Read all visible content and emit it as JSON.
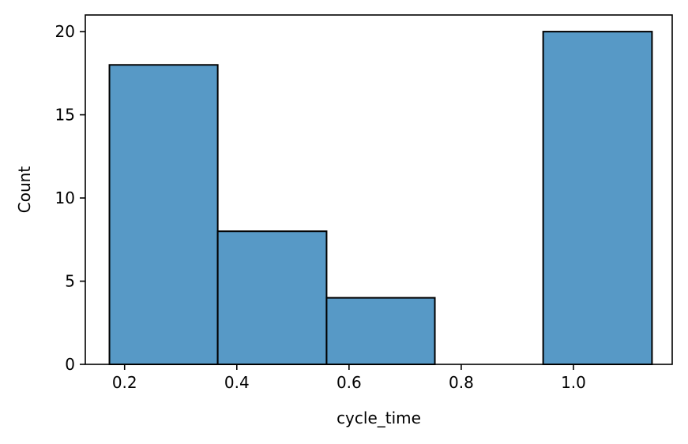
{
  "chart_data": {
    "type": "bar",
    "xlabel": "cycle_time",
    "ylabel": "Count",
    "xlim": [
      0.13,
      1.176
    ],
    "ylim": [
      0,
      21
    ],
    "xticks": [
      0.2,
      0.4,
      0.6,
      0.8,
      1.0
    ],
    "xtick_labels": [
      "0.2",
      "0.4",
      "0.6",
      "0.8",
      "1.0"
    ],
    "yticks": [
      0,
      5,
      10,
      15,
      20
    ],
    "ytick_labels": [
      "0",
      "5",
      "10",
      "15",
      "20"
    ],
    "bins": [
      {
        "x0": 0.173,
        "x1": 0.366,
        "count": 18
      },
      {
        "x0": 0.366,
        "x1": 0.56,
        "count": 8
      },
      {
        "x0": 0.56,
        "x1": 0.753,
        "count": 4
      },
      {
        "x0": 0.753,
        "x1": 0.946,
        "count": 0
      },
      {
        "x0": 0.946,
        "x1": 1.14,
        "count": 20
      }
    ],
    "bar_color": "#5799c6",
    "edge_color": "#000000",
    "grid": false,
    "legend": "none"
  }
}
